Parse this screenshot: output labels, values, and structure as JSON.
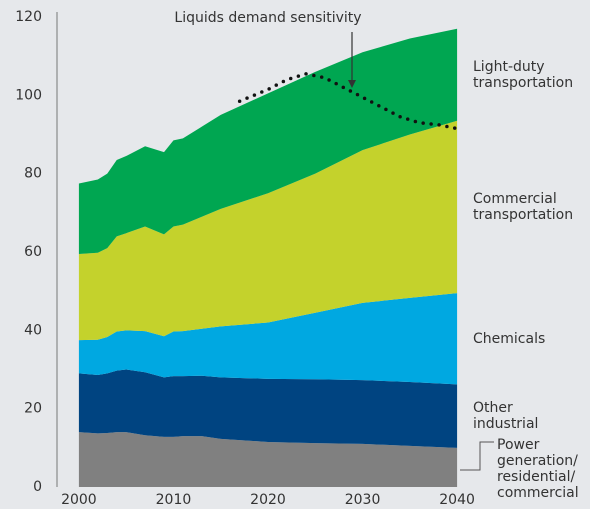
{
  "chart_data": {
    "type": "stacked_area",
    "annotation": "Liquids demand sensitivity",
    "x": [
      2000,
      2002,
      2003,
      2004,
      2005,
      2007,
      2009,
      2010,
      2011,
      2013,
      2015,
      2020,
      2025,
      2030,
      2035,
      2040
    ],
    "series": [
      {
        "name": "Power generation/ residential/ commercial",
        "color": "#808080",
        "values": [
          14,
          13.7,
          13.8,
          14,
          14,
          13.2,
          12.8,
          12.8,
          13,
          13,
          12.3,
          11.5,
          11.2,
          11,
          10.5,
          10
        ]
      },
      {
        "name": "Other industrial",
        "color": "#004481",
        "values": [
          15,
          14.9,
          15.2,
          15.7,
          16,
          16.1,
          15.2,
          15.5,
          15.3,
          15.4,
          15.7,
          16.1,
          16.3,
          16.3,
          16.3,
          16.2
        ]
      },
      {
        "name": "Chemicals",
        "color": "#00a8e1",
        "values": [
          8.5,
          9,
          9.3,
          10,
          10,
          10.5,
          10.5,
          11.4,
          11.5,
          12,
          13,
          14.4,
          17,
          19.7,
          21.5,
          23.3
        ]
      },
      {
        "name": "Commercial transportation",
        "color": "#c4d22c",
        "values": [
          22,
          22.2,
          22.7,
          24.3,
          24.8,
          26.7,
          26,
          26.8,
          27.2,
          28.6,
          30,
          33,
          35.5,
          39,
          41.7,
          44
        ]
      },
      {
        "name": "Light-duty transportation",
        "color": "#00a651",
        "values": [
          18,
          18.7,
          19,
          19.5,
          19.7,
          20.5,
          21,
          22,
          22,
          23,
          24,
          25.5,
          26,
          25,
          24.5,
          23.5
        ]
      }
    ],
    "sensitivity": {
      "x": [
        2017,
        2020,
        2022,
        2024,
        2026,
        2028,
        2030,
        2032,
        2034,
        2036,
        2038,
        2040
      ],
      "values": [
        98.5,
        101.5,
        104,
        105.5,
        104.5,
        102,
        99.5,
        97,
        94.5,
        93,
        92.5,
        91.5
      ],
      "color": "#111111"
    },
    "xlim": [
      1998,
      2042
    ],
    "xticks": [
      2000,
      2010,
      2020,
      2030,
      2040
    ],
    "ylim": [
      0,
      120
    ],
    "yticks": [
      0,
      20,
      40,
      60,
      80,
      100,
      120
    ]
  }
}
